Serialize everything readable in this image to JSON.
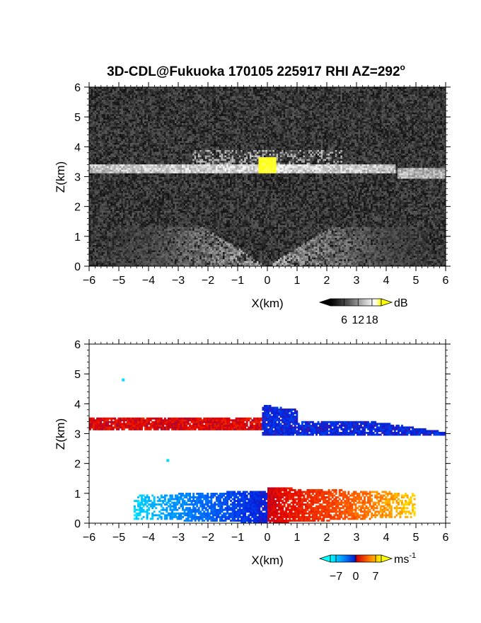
{
  "title": "3D-CDL@Fukuoka 170105 225917 RHI AZ=292",
  "title_suffix": "o",
  "chart_data": [
    {
      "type": "heatmap",
      "name": "reflectivity",
      "xlabel": "X(km)",
      "ylabel": "Z(km)",
      "xlim": [
        -6,
        6
      ],
      "ylim": [
        0,
        6
      ],
      "xticks": [
        -6,
        -5,
        -4,
        -3,
        -2,
        -1,
        0,
        1,
        2,
        3,
        4,
        5,
        6
      ],
      "yticks": [
        0,
        1,
        2,
        3,
        4,
        5,
        6
      ],
      "grid": false,
      "colorbar": {
        "unit": "dB",
        "ticks": [
          6,
          12,
          18
        ],
        "range": [
          0,
          22
        ],
        "colors": [
          "#000000",
          "#555555",
          "#aaaaaa",
          "#ffffff",
          "#ffff00"
        ]
      },
      "features": [
        {
          "kind": "layer",
          "x": [
            -6,
            4.3
          ],
          "z": [
            3.1,
            3.45
          ],
          "value": 12
        },
        {
          "kind": "layer",
          "x": [
            4.4,
            6
          ],
          "z": [
            2.95,
            3.3
          ],
          "value": 11
        },
        {
          "kind": "bright_core",
          "x": [
            -0.3,
            0.3
          ],
          "z": [
            3.15,
            3.65
          ],
          "value": 20
        },
        {
          "kind": "fan",
          "x_center": 0,
          "z": [
            0,
            1.3
          ],
          "value": 10
        }
      ]
    },
    {
      "type": "heatmap",
      "name": "doppler-velocity",
      "xlabel": "X(km)",
      "ylabel": "Z(km)",
      "xlim": [
        -6,
        6
      ],
      "ylim": [
        0,
        6
      ],
      "xticks": [
        -6,
        -5,
        -4,
        -3,
        -2,
        -1,
        0,
        1,
        2,
        3,
        4,
        5,
        6
      ],
      "yticks": [
        0,
        1,
        2,
        3,
        4,
        5,
        6
      ],
      "grid": false,
      "colorbar": {
        "unit": "ms",
        "unit_exp": "-1",
        "ticks": [
          -7,
          0,
          7
        ],
        "range": [
          -9,
          9
        ],
        "colors": [
          "#00ffff",
          "#0080ff",
          "#0020e0",
          "#e00000",
          "#ff6000",
          "#ffff00"
        ]
      },
      "features": [
        {
          "kind": "layer",
          "x": [
            -6,
            -0.2
          ],
          "z": [
            3.1,
            3.55
          ],
          "value": 2
        },
        {
          "kind": "layer",
          "x": [
            -0.2,
            6
          ],
          "z": [
            2.95,
            3.95
          ],
          "value": -2
        },
        {
          "kind": "low_layer",
          "x": [
            -4.5,
            0
          ],
          "z": [
            0,
            1.1
          ],
          "value": -4
        },
        {
          "kind": "low_layer",
          "x": [
            0,
            5
          ],
          "z": [
            0,
            1.2
          ],
          "value": 4
        }
      ]
    }
  ]
}
